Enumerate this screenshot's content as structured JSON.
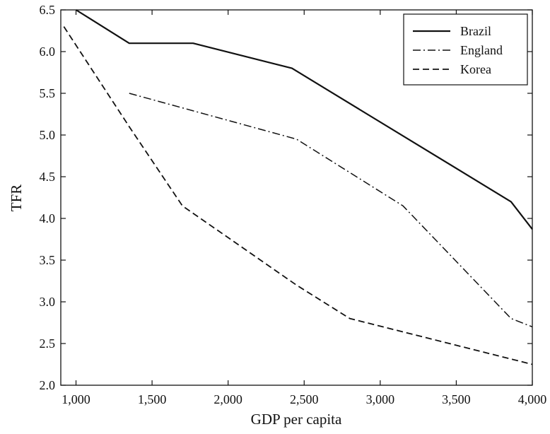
{
  "chart_data": {
    "type": "line",
    "title": "",
    "xlabel": "GDP per capita",
    "ylabel": "TFR",
    "xlim": [
      900,
      4000
    ],
    "ylim": [
      2.0,
      6.5
    ],
    "x_ticks": [
      1000,
      1500,
      2000,
      2500,
      3000,
      3500,
      4000
    ],
    "x_tick_labels": [
      "1,000",
      "1,500",
      "2,000",
      "2,500",
      "3,000",
      "3,500",
      "4,000"
    ],
    "y_ticks": [
      2.0,
      2.5,
      3.0,
      3.5,
      4.0,
      4.5,
      5.0,
      5.5,
      6.0,
      6.5
    ],
    "y_tick_labels": [
      "2.0",
      "2.5",
      "3.0",
      "3.5",
      "4.0",
      "4.5",
      "5.0",
      "5.5",
      "6.0",
      "6.5"
    ],
    "grid": false,
    "legend_position": "top-right",
    "series": [
      {
        "name": "Brazil",
        "style": "solid",
        "color": "#111111",
        "x": [
          1000,
          1350,
          1770,
          2420,
          3860,
          4000
        ],
        "y": [
          6.5,
          6.1,
          6.1,
          5.8,
          4.2,
          3.87
        ]
      },
      {
        "name": "England",
        "style": "dash-dot",
        "color": "#111111",
        "x": [
          1350,
          2450,
          3150,
          3860,
          4000
        ],
        "y": [
          5.5,
          4.95,
          4.15,
          2.8,
          2.7
        ]
      },
      {
        "name": "Korea",
        "style": "dashed",
        "color": "#111111",
        "x": [
          920,
          1350,
          1700,
          2450,
          2800,
          4000
        ],
        "y": [
          6.3,
          5.1,
          4.15,
          3.2,
          2.8,
          2.25
        ]
      }
    ]
  }
}
